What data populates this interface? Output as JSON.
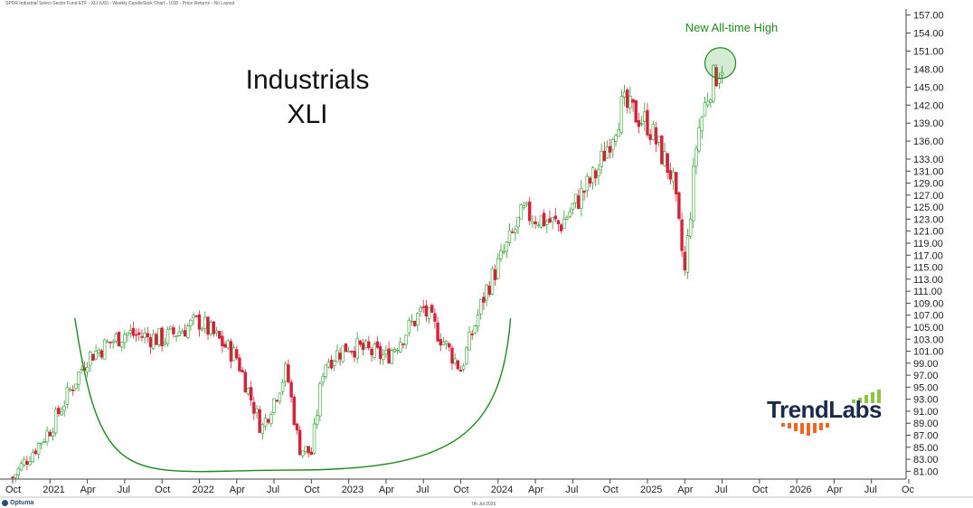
{
  "header": {
    "text": "SPDR Industrial Select Sector Fund ETF - XLI (US) - Weekly CandleStick Chart - USD - Price Returns - No Layout"
  },
  "chart_data": {
    "type": "candlestick",
    "title": "Industrials",
    "subtitle": "XLI",
    "annotation": "New All-time High",
    "ylim": [
      80,
      158
    ],
    "y_ticks": [
      "157.00",
      "154.00",
      "151.00",
      "148.00",
      "145.00",
      "142.00",
      "139.00",
      "136.00",
      "133.00",
      "131.00",
      "129.00",
      "127.00",
      "125.00",
      "123.00",
      "121.00",
      "119.00",
      "117.00",
      "115.00",
      "113.00",
      "111.00",
      "109.00",
      "107.00",
      "105.00",
      "103.00",
      "101.00",
      "99.00",
      "97.00",
      "95.00",
      "93.00",
      "91.00",
      "89.00",
      "87.00",
      "85.00",
      "83.00",
      "81.00"
    ],
    "x_ticks": [
      "Oct",
      "2021",
      "Apr",
      "Jul",
      "Oct",
      "2022",
      "Apr",
      "Jul",
      "Oct",
      "2023",
      "Apr",
      "Jul",
      "Oct",
      "2024",
      "Apr",
      "Jul",
      "Oct",
      "2025",
      "Apr",
      "Jul",
      "Oct",
      "2026",
      "Apr",
      "Jul",
      "Oc"
    ],
    "x_range": [
      "2020-10",
      "2026-10"
    ],
    "key_points": [
      {
        "date": "2020-10",
        "value": 80
      },
      {
        "date": "2021-01",
        "value": 88
      },
      {
        "date": "2021-04",
        "value": 100
      },
      {
        "date": "2021-07",
        "value": 104
      },
      {
        "date": "2021-10",
        "value": 103
      },
      {
        "date": "2022-01",
        "value": 106
      },
      {
        "date": "2022-04",
        "value": 100
      },
      {
        "date": "2022-06",
        "value": 88
      },
      {
        "date": "2022-08",
        "value": 98
      },
      {
        "date": "2022-09",
        "value": 85
      },
      {
        "date": "2022-10",
        "value": 84
      },
      {
        "date": "2022-11",
        "value": 99
      },
      {
        "date": "2023-01",
        "value": 102
      },
      {
        "date": "2023-04",
        "value": 100
      },
      {
        "date": "2023-07",
        "value": 108
      },
      {
        "date": "2023-10",
        "value": 98
      },
      {
        "date": "2023-12",
        "value": 111
      },
      {
        "date": "2024-03",
        "value": 124
      },
      {
        "date": "2024-06",
        "value": 122
      },
      {
        "date": "2024-09",
        "value": 131
      },
      {
        "date": "2024-11",
        "value": 142
      },
      {
        "date": "2025-01",
        "value": 139
      },
      {
        "date": "2025-03",
        "value": 130
      },
      {
        "date": "2025-04",
        "value": 114
      },
      {
        "date": "2025-05",
        "value": 137
      },
      {
        "date": "2025-06",
        "value": 145
      },
      {
        "date": "2025-07",
        "value": 149
      }
    ]
  },
  "footer": {
    "date": "7th Jul 2025",
    "brand": "Optuma"
  },
  "logo": {
    "text": "TrendLabs",
    "bar_colors": [
      "#8cc63f",
      "#f26522"
    ]
  },
  "colors": {
    "up": "#2e9e2e",
    "down": "#d6213a",
    "arc": "#1e8a1e",
    "text": "#111111"
  }
}
